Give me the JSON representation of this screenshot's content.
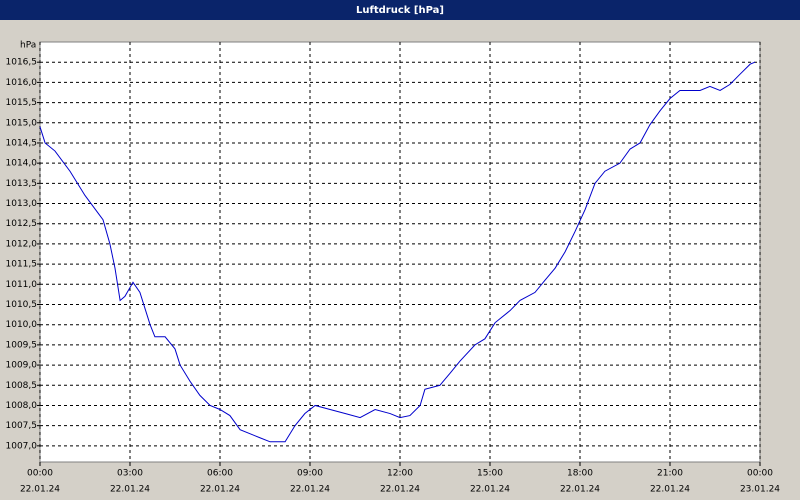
{
  "chart_data": {
    "type": "line",
    "title": "Luftdruck [hPa]",
    "y_unit": "hPa",
    "x": [
      0,
      0.17,
      0.5,
      1,
      1.5,
      2,
      2.1,
      2.33,
      2.5,
      2.67,
      2.83,
      3.1,
      3.33,
      3.67,
      3.83,
      4.17,
      4.5,
      4.67,
      5,
      5.33,
      5.67,
      6,
      6.33,
      6.67,
      7.33,
      7.67,
      8.17,
      8.5,
      8.83,
      9.17,
      9.67,
      10.17,
      10.67,
      11.17,
      11.67,
      12,
      12.33,
      12.67,
      12.83,
      13.33,
      13.67,
      14,
      14.5,
      14.83,
      15.17,
      15.67,
      16,
      16.5,
      16.83,
      17.17,
      17.5,
      17.83,
      18.17,
      18.5,
      18.83,
      19.33,
      19.67,
      20,
      20.33,
      20.67,
      21,
      21.33,
      22,
      22.33,
      22.67,
      23,
      23.33,
      23.67,
      23.83
    ],
    "series": [
      {
        "name": "Luftdruck",
        "color": "#0000cc",
        "values": [
          1014.9,
          1014.5,
          1014.3,
          1013.8,
          1013.2,
          1012.7,
          1012.6,
          1012.0,
          1011.4,
          1010.6,
          1010.7,
          1011.05,
          1010.8,
          1010.0,
          1009.7,
          1009.7,
          1009.4,
          1009.0,
          1008.6,
          1008.25,
          1008.0,
          1007.9,
          1007.75,
          1007.4,
          1007.2,
          1007.1,
          1007.1,
          1007.5,
          1007.8,
          1008.0,
          1007.9,
          1007.8,
          1007.7,
          1007.9,
          1007.8,
          1007.7,
          1007.75,
          1008.0,
          1008.4,
          1008.5,
          1008.8,
          1009.1,
          1009.5,
          1009.65,
          1010.05,
          1010.35,
          1010.6,
          1010.8,
          1011.1,
          1011.4,
          1011.8,
          1012.3,
          1012.85,
          1013.5,
          1013.8,
          1014.0,
          1014.35,
          1014.5,
          1014.95,
          1015.3,
          1015.6,
          1015.8,
          1015.8,
          1015.9,
          1015.8,
          1015.95,
          1016.2,
          1016.45,
          1016.5
        ]
      }
    ],
    "xlim": [
      0,
      24
    ],
    "xticks": [
      {
        "value": 0,
        "label": "00:00"
      },
      {
        "value": 3,
        "label": "03:00"
      },
      {
        "value": 6,
        "label": "06:00"
      },
      {
        "value": 9,
        "label": "09:00"
      },
      {
        "value": 12,
        "label": "12:00"
      },
      {
        "value": 15,
        "label": "15:00"
      },
      {
        "value": 18,
        "label": "18:00"
      },
      {
        "value": 21,
        "label": "21:00"
      },
      {
        "value": 24,
        "label": "00:00"
      }
    ],
    "xtick_dates": [
      "22.01.24",
      "22.01.24",
      "22.01.24",
      "22.01.24",
      "22.01.24",
      "22.01.24",
      "22.01.24",
      "22.01.24",
      "23.01.24"
    ],
    "ylim": [
      1006.6,
      1017.0
    ],
    "yticks": [
      {
        "value": 1007.0,
        "label": "1007,0"
      },
      {
        "value": 1007.5,
        "label": "1007,5"
      },
      {
        "value": 1008.0,
        "label": "1008,0"
      },
      {
        "value": 1008.5,
        "label": "1008,5"
      },
      {
        "value": 1009.0,
        "label": "1009,0"
      },
      {
        "value": 1009.5,
        "label": "1009,5"
      },
      {
        "value": 1010.0,
        "label": "1010,0"
      },
      {
        "value": 1010.5,
        "label": "1010,5"
      },
      {
        "value": 1011.0,
        "label": "1011,0"
      },
      {
        "value": 1011.5,
        "label": "1011,5"
      },
      {
        "value": 1012.0,
        "label": "1012,0"
      },
      {
        "value": 1012.5,
        "label": "1012,5"
      },
      {
        "value": 1013.0,
        "label": "1013,0"
      },
      {
        "value": 1013.5,
        "label": "1013,5"
      },
      {
        "value": 1014.0,
        "label": "1014,0"
      },
      {
        "value": 1014.5,
        "label": "1014,5"
      },
      {
        "value": 1015.0,
        "label": "1015,0"
      },
      {
        "value": 1015.5,
        "label": "1015,5"
      },
      {
        "value": 1016.0,
        "label": "1016,0"
      },
      {
        "value": 1016.5,
        "label": "1016,5"
      }
    ],
    "grid": true
  }
}
